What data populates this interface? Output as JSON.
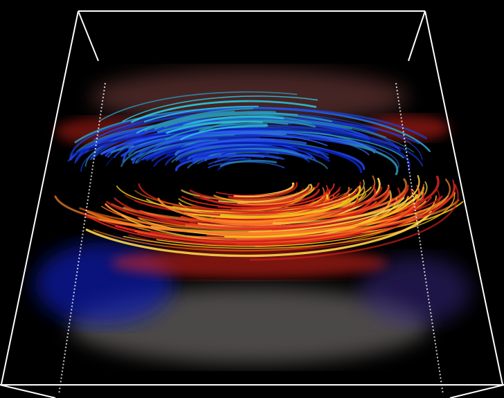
{
  "scene": {
    "background": "#000000",
    "box_color": "#ffffff",
    "palette": {
      "deep_blue": "#0a1fb0",
      "blue": "#1e46e6",
      "cyan": "#2cc0d8",
      "teal": "#2a8fb0",
      "red": "#e0281e",
      "orange": "#f06a14",
      "yellow": "#f5c21a",
      "white_haze": "#d8d0cc",
      "pink_haze": "#c86a68"
    },
    "description_tags": [
      "bounding-box",
      "streamlines",
      "vortex",
      "volume-rendering"
    ]
  }
}
